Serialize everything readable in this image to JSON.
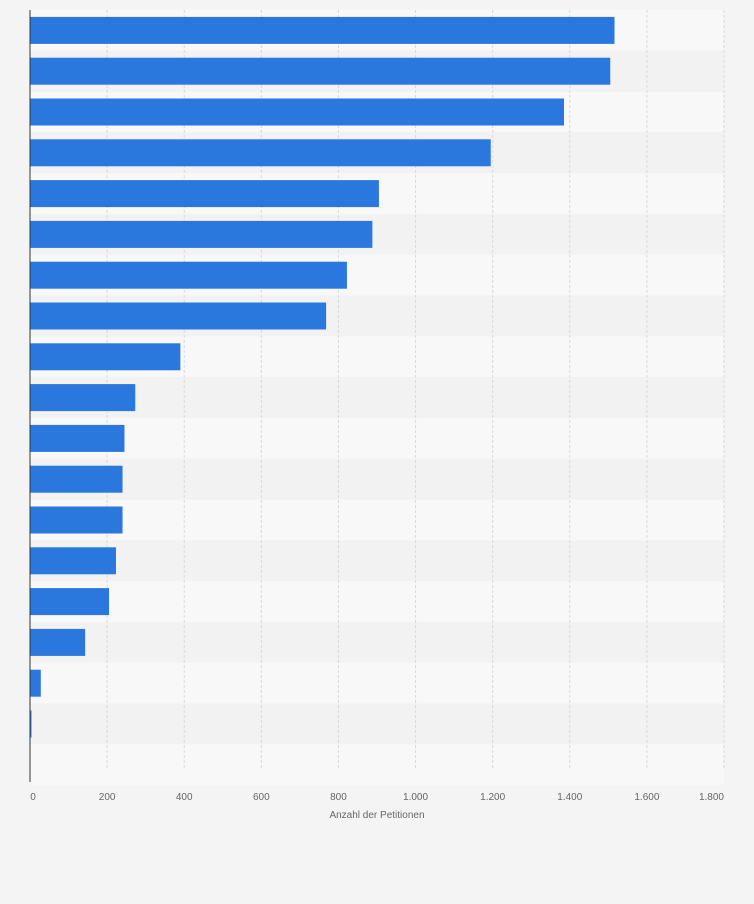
{
  "chart_data": {
    "type": "bar",
    "orientation": "horizontal",
    "title": "",
    "xlabel": "Anzahl der Petitionen",
    "ylabel": "",
    "xlim": [
      0,
      1800
    ],
    "x_ticks": [
      0,
      200,
      400,
      600,
      800,
      1000,
      1200,
      1400,
      1600,
      1800
    ],
    "x_tick_labels": [
      "0",
      "200",
      "400",
      "600",
      "800",
      "1.000",
      "1.200",
      "1.400",
      "1.600",
      "1.800"
    ],
    "values": [
      1516,
      1505,
      1385,
      1195,
      905,
      888,
      822,
      768,
      390,
      273,
      245,
      240,
      240,
      223,
      205,
      143,
      28,
      3
    ],
    "grid": true,
    "legend": "none",
    "colors": {
      "bar": "#2a77dd",
      "band_light": "#f8f8f8",
      "band_dark": "#f2f2f2",
      "grid": "#d9d9d9",
      "axis": "#333333",
      "tick_text": "#666666"
    }
  }
}
